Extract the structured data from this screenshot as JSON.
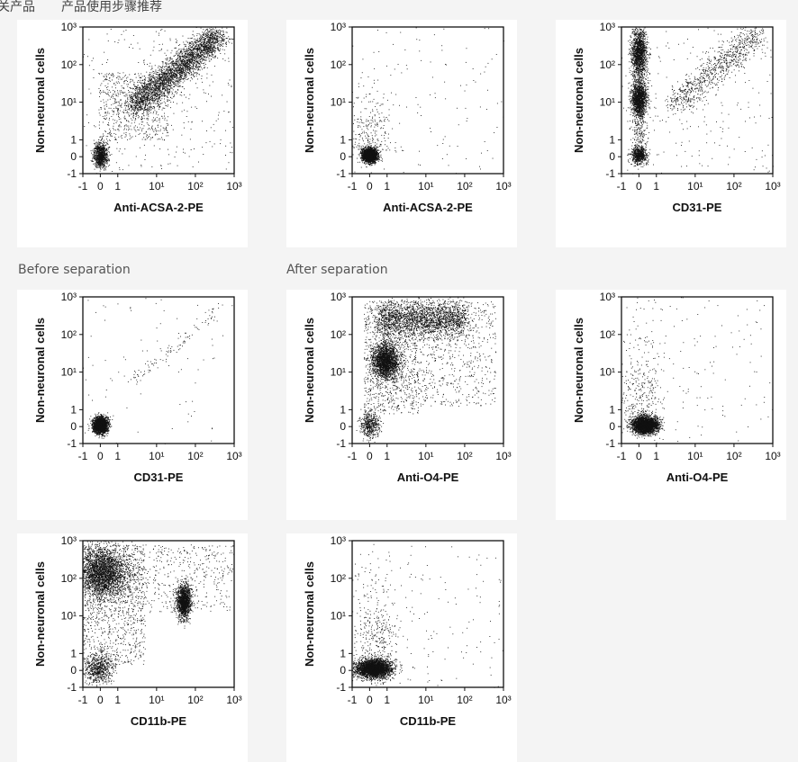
{
  "nav": {
    "item1": "关产品",
    "item2": "产品使用步骤推荐"
  },
  "captions": {
    "before": "Before separation",
    "after": "After separation"
  },
  "chart_data": [
    {
      "type": "scatter",
      "ylabel": "Non-neuronal cells",
      "xlabel": "Anti-ACSA-2-PE",
      "xticks": [
        "-1",
        "0",
        "1",
        "10¹",
        "10²",
        "10³"
      ],
      "yticks": [
        "-1",
        "0",
        "1",
        "10¹",
        "10²",
        "10³"
      ],
      "xlim": [
        -1,
        1000
      ],
      "ylim": [
        -1,
        1000
      ],
      "scale": "biexponential",
      "populations": [
        {
          "x": 0,
          "y": 0.3,
          "spread": 0.6,
          "density": "high"
        },
        {
          "x": "1→300",
          "y": "5→800",
          "shape": "diagonal band",
          "density": "high"
        }
      ]
    },
    {
      "type": "scatter",
      "ylabel": "Non-neuronal cells",
      "xlabel": "Anti-ACSA-2-PE",
      "xticks": [
        "-1",
        "0",
        "1",
        "10¹",
        "10²",
        "10³"
      ],
      "yticks": [
        "-1",
        "0",
        "1",
        "10¹",
        "10²",
        "10³"
      ],
      "xlim": [
        -1,
        1000
      ],
      "ylim": [
        -1,
        1000
      ],
      "scale": "biexponential",
      "populations": [
        {
          "x": 0,
          "y": 0.3,
          "spread": 0.5,
          "density": "very high"
        }
      ]
    },
    {
      "type": "scatter",
      "ylabel": "Non-neuronal cells",
      "xlabel": "CD31-PE",
      "xticks": [
        "-1",
        "0",
        "1",
        "10¹",
        "10²",
        "10³"
      ],
      "yticks": [
        "-1",
        "0",
        "1",
        "10¹",
        "10²",
        "10³"
      ],
      "xlim": [
        -1,
        1000
      ],
      "ylim": [
        -1,
        1000
      ],
      "scale": "biexponential",
      "populations": [
        {
          "x": 0,
          "y": "0.3→500",
          "shape": "vertical column",
          "density": "high"
        },
        {
          "x": "5→500",
          "y": "10→800",
          "shape": "diagonal band",
          "density": "medium"
        }
      ]
    },
    {
      "type": "scatter",
      "ylabel": "Non-neuronal cells",
      "xlabel": "CD31-PE",
      "xticks": [
        "-1",
        "0",
        "1",
        "10¹",
        "10²",
        "10³"
      ],
      "yticks": [
        "-1",
        "0",
        "1",
        "10¹",
        "10²",
        "10³"
      ],
      "xlim": [
        -1,
        1000
      ],
      "ylim": [
        -1,
        1000
      ],
      "scale": "biexponential",
      "populations": [
        {
          "x": 0,
          "y": 0.3,
          "spread": 0.5,
          "density": "very high"
        }
      ]
    },
    {
      "type": "scatter",
      "ylabel": "Non-neuronal cells",
      "xlabel": "Anti-O4-PE",
      "xticks": [
        "-1",
        "0",
        "1",
        "10¹",
        "10²",
        "10³"
      ],
      "yticks": [
        "-1",
        "0",
        "1",
        "10¹",
        "10²",
        "10³"
      ],
      "xlim": [
        -1,
        1000
      ],
      "ylim": [
        -1,
        1000
      ],
      "scale": "biexponential",
      "populations": [
        {
          "x": 0.5,
          "y": 20,
          "density": "very high"
        },
        {
          "x": "0→100",
          "y": "100→800",
          "density": "high"
        },
        {
          "x": 0,
          "y": 0.3,
          "density": "medium"
        }
      ]
    },
    {
      "type": "scatter",
      "ylabel": "Non-neuronal cells",
      "xlabel": "Anti-O4-PE",
      "xticks": [
        "-1",
        "0",
        "1",
        "10¹",
        "10²",
        "10³"
      ],
      "yticks": [
        "-1",
        "0",
        "1",
        "10¹",
        "10²",
        "10³"
      ],
      "xlim": [
        -1,
        1000
      ],
      "ylim": [
        -1,
        1000
      ],
      "scale": "biexponential",
      "populations": [
        {
          "x": 0.3,
          "y": 0.3,
          "spread": 0.8,
          "density": "very high"
        }
      ]
    },
    {
      "type": "scatter",
      "ylabel": "Non-neuronal cells",
      "xlabel": "CD11b-PE",
      "xticks": [
        "-1",
        "0",
        "1",
        "10¹",
        "10²",
        "10³"
      ],
      "yticks": [
        "-1",
        "0",
        "1",
        "10¹",
        "10²",
        "10³"
      ],
      "xlim": [
        -1,
        1000
      ],
      "ylim": [
        -1,
        1000
      ],
      "scale": "biexponential",
      "populations": [
        {
          "x": "-1→5",
          "y": "50→600",
          "density": "high"
        },
        {
          "x": 60,
          "y": 25,
          "density": "high"
        },
        {
          "x": 0.2,
          "y": 0.2,
          "density": "medium"
        }
      ]
    },
    {
      "type": "scatter",
      "ylabel": "Non-neuronal cells",
      "xlabel": "CD11b-PE",
      "xticks": [
        "-1",
        "0",
        "1",
        "10¹",
        "10²",
        "10³"
      ],
      "yticks": [
        "-1",
        "0",
        "1",
        "10¹",
        "10²",
        "10³"
      ],
      "xlim": [
        -1,
        1000
      ],
      "ylim": [
        -1,
        1000
      ],
      "scale": "biexponential",
      "populations": [
        {
          "x": 0.3,
          "y": 0.3,
          "spread": 0.9,
          "density": "very high"
        }
      ]
    }
  ]
}
